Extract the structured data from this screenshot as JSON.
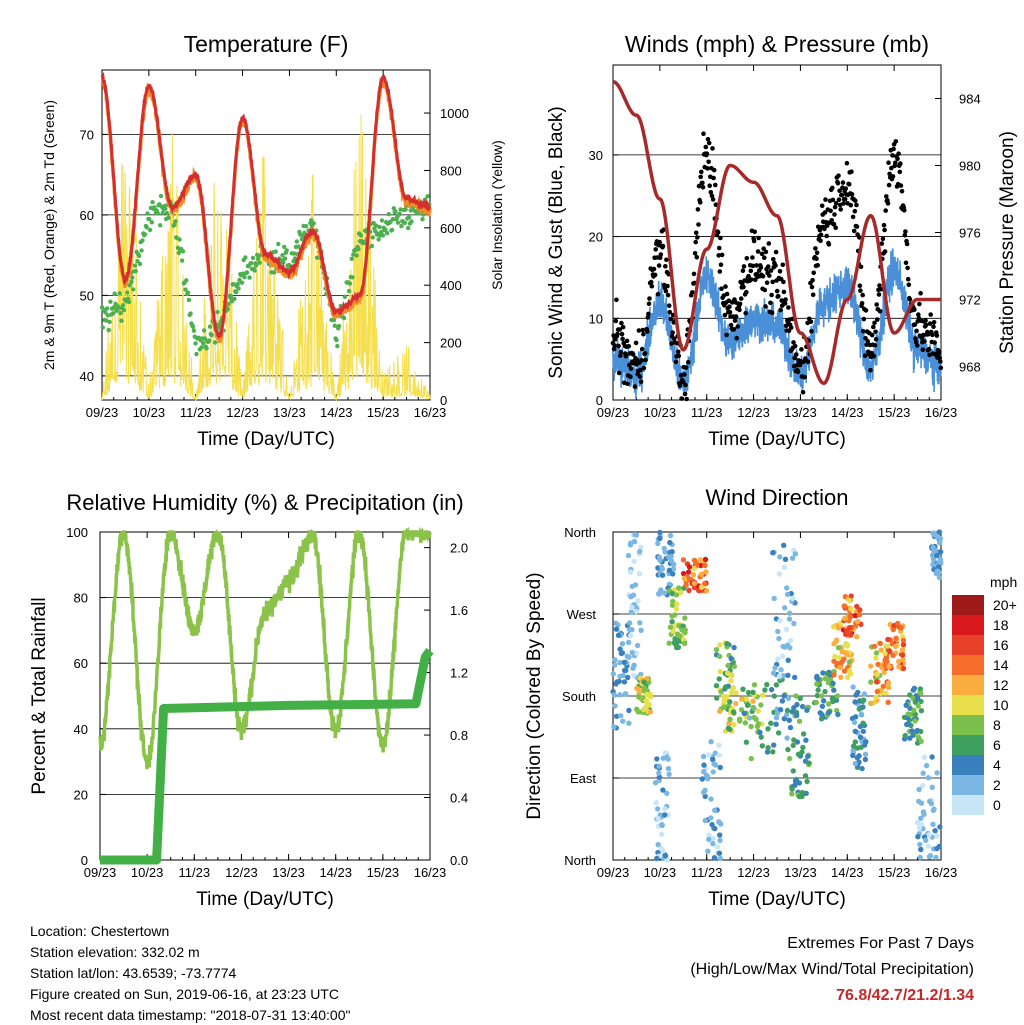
{
  "colors": {
    "temp_2m": "#d32f2f",
    "temp_9m": "#f28c28",
    "dewpoint": "#4caf50",
    "solar": "#f5df4d",
    "wind": "#4a90d9",
    "gust": "#000000",
    "pressure": "#a52a2a",
    "rh": "#8bc34a",
    "precip": "#43b047",
    "ext": "#c62828"
  },
  "time_ticks": [
    "09/23",
    "10/23",
    "11/23",
    "12/23",
    "13/23",
    "14/23",
    "15/23",
    "16/23"
  ],
  "time_axis_label": "Time (Day/UTC)",
  "temperature": {
    "title": "Temperature (F)",
    "ylabel_left": "2m & 9m T (Red, Orange) & 2m Td (Green)",
    "ylabel_right": "Solar Insolation (Yellow)",
    "yticks_left": [
      40,
      50,
      60,
      70
    ],
    "yticks_right": [
      0,
      200,
      400,
      600,
      800,
      1000
    ],
    "ylim_left": [
      37,
      78
    ],
    "ylim_right": [
      0,
      1150
    ]
  },
  "winds": {
    "title": "Winds (mph) & Pressure (mb)",
    "ylabel_left": "Sonic Wind & Gust (Blue, Black)",
    "ylabel_right": "Station Pressure (Maroon)",
    "yticks_left": [
      0,
      10,
      20,
      30
    ],
    "yticks_right": [
      968,
      972,
      976,
      980,
      984
    ],
    "ylim_left": [
      0,
      41
    ],
    "ylim_right": [
      966,
      986
    ]
  },
  "humidity": {
    "title": "Relative Humidity (%) & Precipitation (in)",
    "ylabel_left": "Percent & Total Rainfall",
    "yticks_left": [
      0,
      20,
      40,
      60,
      80,
      100
    ],
    "yticks_right": [
      "0.0",
      "0.4",
      "0.8",
      "1.2",
      "1.6",
      "2.0"
    ],
    "ylim_left": [
      0,
      100
    ],
    "ylim_right": [
      0,
      2.1
    ]
  },
  "direction": {
    "title": "Wind Direction",
    "ylabel": "Direction (Colored By Speed)",
    "yticks": [
      "North",
      "East",
      "South",
      "West",
      "North"
    ],
    "colorbar_title": "mph",
    "colorbar_labels": [
      "20+",
      "18",
      "16",
      "14",
      "12",
      "10",
      "8",
      "6",
      "4",
      "2",
      "0"
    ],
    "colorbar_colors": [
      "#9e1a1a",
      "#d7191c",
      "#e8412a",
      "#f46d2b",
      "#fbae3f",
      "#e8e04a",
      "#7bc04c",
      "#3f9f5f",
      "#3a80bd",
      "#7ab8e3",
      "#c8e6f8"
    ]
  },
  "chart_data": [
    {
      "type": "line",
      "title": "Temperature (F)",
      "xlabel": "Time (Day/UTC)",
      "ylabel": "2m & 9m T (Red, Orange) & 2m Td (Green)",
      "x": [
        9.0,
        9.5,
        10.0,
        10.5,
        11.0,
        11.5,
        12.0,
        12.5,
        13.0,
        13.5,
        14.0,
        14.5,
        15.0,
        15.5,
        16.0
      ],
      "series": [
        {
          "name": "2m T (Red)",
          "values": [
            77,
            52,
            76,
            61,
            65,
            45,
            72,
            55,
            53,
            58,
            48,
            50,
            77,
            62,
            61
          ]
        },
        {
          "name": "2m Td (Green)",
          "values": [
            47,
            49,
            60,
            61,
            44,
            46,
            53,
            55,
            54,
            59,
            45,
            57,
            58,
            60,
            61
          ]
        },
        {
          "name": "Solar Insolation (Yellow)",
          "values": [
            0,
            1050,
            50,
            950,
            0,
            1000,
            30,
            1000,
            20,
            800,
            0,
            1080,
            100,
            200,
            20
          ]
        }
      ],
      "ylim": [
        37,
        78
      ]
    },
    {
      "type": "line",
      "title": "Winds (mph) & Pressure (mb)",
      "xlabel": "Time (Day/UTC)",
      "ylabel": "Sonic Wind & Gust (Blue, Black)",
      "x": [
        9.0,
        9.5,
        10.0,
        10.5,
        11.0,
        11.5,
        12.0,
        12.5,
        13.0,
        13.5,
        14.0,
        14.5,
        15.0,
        15.5,
        16.0
      ],
      "series": [
        {
          "name": "Sonic Wind (Blue)",
          "values": [
            5,
            3,
            12,
            2,
            15,
            7,
            10,
            9,
            3,
            12,
            14,
            4,
            16,
            6,
            4
          ]
        },
        {
          "name": "Gust (Black)",
          "values": [
            8,
            4,
            18,
            3,
            30,
            10,
            17,
            14,
            4,
            22,
            27,
            6,
            30,
            9,
            6
          ]
        },
        {
          "name": "Station Pressure (Maroon)",
          "values": [
            985,
            983,
            978,
            969,
            975,
            980,
            979,
            977,
            970,
            967,
            972,
            977,
            970,
            972,
            972
          ]
        }
      ],
      "ylim": [
        0,
        41
      ]
    },
    {
      "type": "line",
      "title": "Relative Humidity (%) & Precipitation (in)",
      "xlabel": "Time (Day/UTC)",
      "ylabel": "Percent & Total Rainfall",
      "x": [
        9.0,
        9.5,
        10.0,
        10.5,
        11.0,
        11.5,
        12.0,
        12.5,
        13.0,
        13.5,
        14.0,
        14.5,
        15.0,
        15.5,
        16.0
      ],
      "series": [
        {
          "name": "Relative Humidity",
          "values": [
            35,
            100,
            30,
            100,
            70,
            100,
            40,
            75,
            85,
            100,
            40,
            100,
            35,
            100,
            100
          ]
        },
        {
          "name": "Total Precipitation",
          "values": [
            0,
            0,
            0,
            0.97,
            0.97,
            0.97,
            0.97,
            0.97,
            0.99,
            1.0,
            1.0,
            1.0,
            1.0,
            1.0,
            1.34
          ]
        }
      ],
      "ylim": [
        0,
        100
      ]
    },
    {
      "type": "scatter",
      "title": "Wind Direction",
      "xlabel": "Time (Day/UTC)",
      "ylabel": "Direction (Colored By Speed)",
      "x": [
        9.2,
        9.7,
        10.2,
        10.8,
        11.0,
        11.6,
        12.2,
        12.6,
        13.0,
        13.4,
        13.8,
        14.3,
        14.8,
        15.2,
        15.8
      ],
      "values": [
        180,
        30,
        160,
        280,
        300,
        20,
        150,
        140,
        140,
        110,
        200,
        260,
        220,
        230,
        160
      ],
      "ylim": [
        0,
        360
      ]
    }
  ],
  "footer": {
    "location": "Location: Chestertown",
    "elevation": "Station elevation: 332.02 m",
    "latlon": "Station lat/lon: 43.6539; -73.7774",
    "created": "Figure created on Sun, 2019-06-16, at 23:23 UTC",
    "recent": "Most recent data timestamp: \"2018-07-31 13:40:00\""
  },
  "extremes": {
    "title": "Extremes For Past 7 Days",
    "subtitle": "(High/Low/Max Wind/Total Precipitation)",
    "high": "76.8",
    "low": "42.7",
    "max_wind": "21.2",
    "total_precip": "1.34"
  }
}
